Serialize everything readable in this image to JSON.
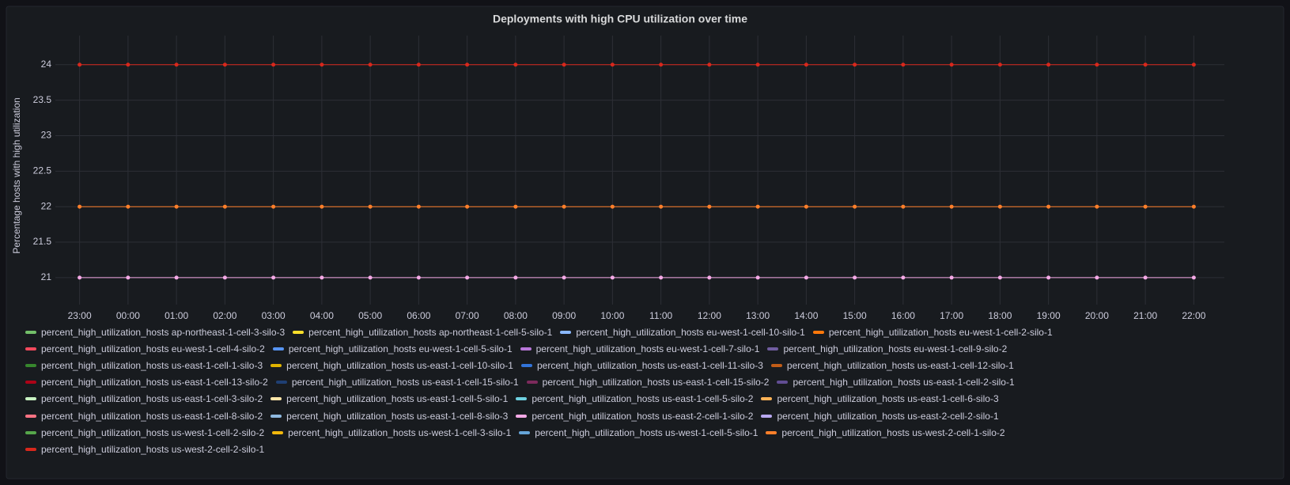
{
  "chart_data": {
    "type": "line",
    "title": "Deployments with high CPU utilization over time",
    "y_label": "Percentage hosts with high utilization",
    "categories": [
      "23:00",
      "00:00",
      "01:00",
      "02:00",
      "03:00",
      "04:00",
      "05:00",
      "06:00",
      "07:00",
      "08:00",
      "09:00",
      "10:00",
      "11:00",
      "12:00",
      "13:00",
      "14:00",
      "15:00",
      "16:00",
      "17:00",
      "18:00",
      "19:00",
      "20:00",
      "21:00",
      "22:00"
    ],
    "ylim": [
      20.62,
      24.41
    ],
    "yticks": [
      21,
      21.5,
      22,
      22.5,
      23,
      23.5,
      24
    ],
    "grid": true,
    "series": [
      {
        "name": "percent_high_utilization_hosts ap-northeast-1-cell-3-silo-3",
        "color": "#73bf69"
      },
      {
        "name": "percent_high_utilization_hosts ap-northeast-1-cell-5-silo-1",
        "color": "#fade2a"
      },
      {
        "name": "percent_high_utilization_hosts eu-west-1-cell-10-silo-1",
        "color": "#8ab8ff"
      },
      {
        "name": "percent_high_utilization_hosts eu-west-1-cell-2-silo-1",
        "color": "#ff780a"
      },
      {
        "name": "percent_high_utilization_hosts eu-west-1-cell-4-silo-2",
        "color": "#f2495c"
      },
      {
        "name": "percent_high_utilization_hosts eu-west-1-cell-5-silo-1",
        "color": "#5794f2"
      },
      {
        "name": "percent_high_utilization_hosts eu-west-1-cell-7-silo-1",
        "color": "#b877d9"
      },
      {
        "name": "percent_high_utilization_hosts eu-west-1-cell-9-silo-2",
        "color": "#705da0"
      },
      {
        "name": "percent_high_utilization_hosts us-east-1-cell-1-silo-3",
        "color": "#37872d"
      },
      {
        "name": "percent_high_utilization_hosts us-east-1-cell-10-silo-1",
        "color": "#e0b400"
      },
      {
        "name": "percent_high_utilization_hosts us-east-1-cell-11-silo-3",
        "color": "#3274d9"
      },
      {
        "name": "percent_high_utilization_hosts us-east-1-cell-12-silo-1",
        "color": "#c15c17"
      },
      {
        "name": "percent_high_utilization_hosts us-east-1-cell-13-silo-2",
        "color": "#ad0317"
      },
      {
        "name": "percent_high_utilization_hosts us-east-1-cell-15-silo-1",
        "color": "#1f3f73"
      },
      {
        "name": "percent_high_utilization_hosts us-east-1-cell-15-silo-2",
        "color": "#7c2a5c"
      },
      {
        "name": "percent_high_utilization_hosts us-east-1-cell-2-silo-1",
        "color": "#614d93"
      },
      {
        "name": "percent_high_utilization_hosts us-east-1-cell-3-silo-2",
        "color": "#c8f2c2"
      },
      {
        "name": "percent_high_utilization_hosts us-east-1-cell-5-silo-1",
        "color": "#ffe5a8"
      },
      {
        "name": "percent_high_utilization_hosts us-east-1-cell-5-silo-2",
        "color": "#6ed0e0"
      },
      {
        "name": "percent_high_utilization_hosts us-east-1-cell-6-silo-3",
        "color": "#ffb357"
      },
      {
        "name": "percent_high_utilization_hosts us-east-1-cell-8-silo-2",
        "color": "#ff7383"
      },
      {
        "name": "percent_high_utilization_hosts us-east-1-cell-8-silo-3",
        "color": "#8fb9e0"
      },
      {
        "name": "percent_high_utilization_hosts us-east-2-cell-1-silo-2",
        "color": "#f5a9e6",
        "values": [
          21,
          21,
          21,
          21,
          21,
          21,
          21,
          21,
          21,
          21,
          21,
          21,
          21,
          21,
          21,
          21,
          21,
          21,
          21,
          21,
          21,
          21,
          21,
          21
        ]
      },
      {
        "name": "percent_high_utilization_hosts us-east-2-cell-2-silo-1",
        "color": "#b8a8f0"
      },
      {
        "name": "percent_high_utilization_hosts us-west-1-cell-2-silo-2",
        "color": "#56a64b"
      },
      {
        "name": "percent_high_utilization_hosts us-west-1-cell-3-silo-1",
        "color": "#f2b80c"
      },
      {
        "name": "percent_high_utilization_hosts us-west-1-cell-5-silo-1",
        "color": "#65a4d8"
      },
      {
        "name": "percent_high_utilization_hosts us-west-2-cell-1-silo-2",
        "color": "#ff7f2a",
        "values": [
          22,
          22,
          22,
          22,
          22,
          22,
          22,
          22,
          22,
          22,
          22,
          22,
          22,
          22,
          22,
          22,
          22,
          22,
          22,
          22,
          22,
          22,
          22,
          22
        ]
      },
      {
        "name": "percent_high_utilization_hosts us-west-2-cell-2-silo-1",
        "color": "#d8281c",
        "values": [
          24,
          24,
          24,
          24,
          24,
          24,
          24,
          24,
          24,
          24,
          24,
          24,
          24,
          24,
          24,
          24,
          24,
          24,
          24,
          24,
          24,
          24,
          24,
          24
        ]
      }
    ]
  }
}
